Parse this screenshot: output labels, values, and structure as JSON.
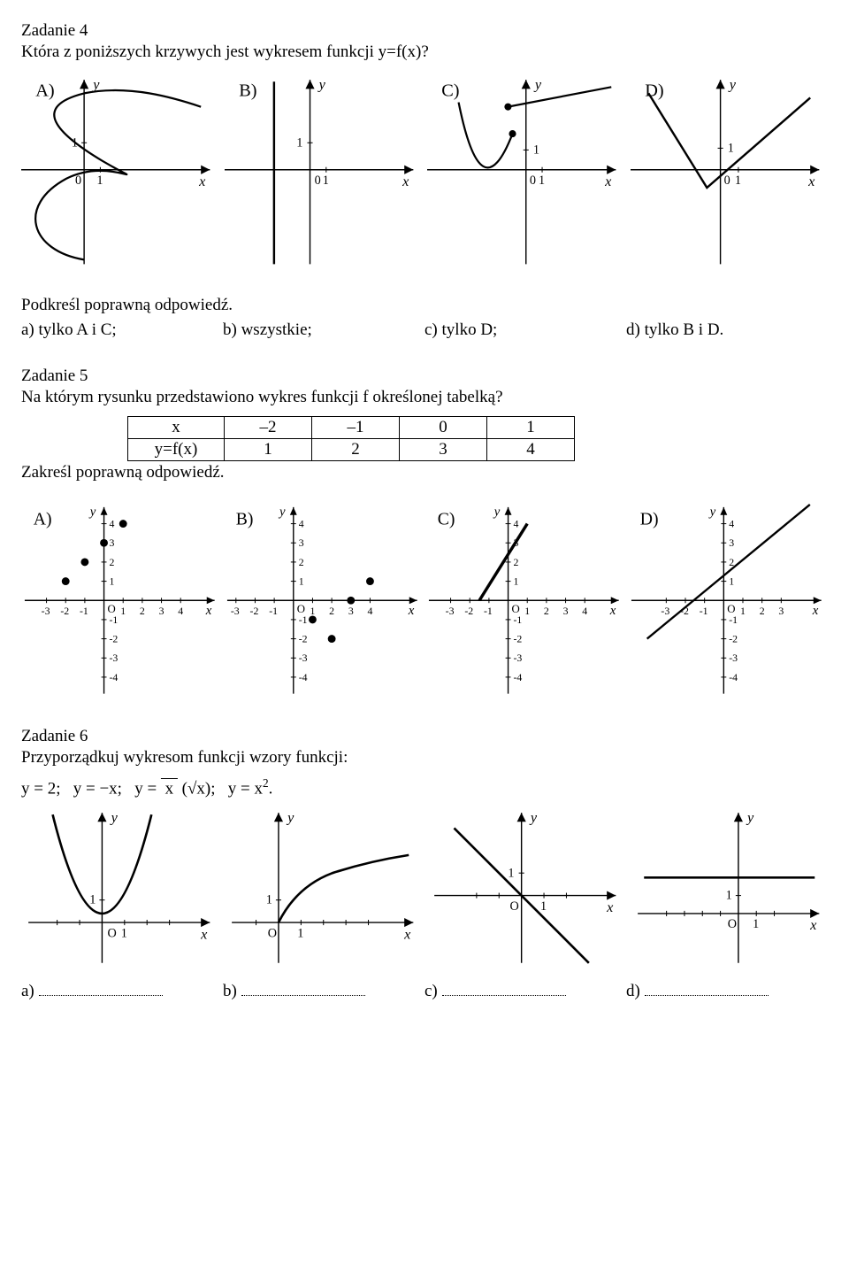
{
  "z4": {
    "title": "Zadanie 4",
    "question": "Która z poniższych krzywych jest wykresem funkcji y=f(x)?",
    "panels": [
      "A)",
      "B)",
      "C)",
      "D)"
    ],
    "axis_labels": {
      "x": "x",
      "y": "y",
      "one": "1"
    },
    "instr": "Podkreśl poprawną odpowiedź.",
    "answers": [
      "a) tylko A i C;",
      "b) wszystkie;",
      "c) tylko D;",
      "d) tylko B i D."
    ]
  },
  "z5": {
    "title": "Zadanie 5",
    "question": "Na którym rysunku przedstawiono wykres funkcji f określonej tabelką?",
    "table": {
      "head": [
        "x",
        "–2",
        "–1",
        "0",
        "1"
      ],
      "row": [
        "y=f(x)",
        "1",
        "2",
        "3",
        "4"
      ]
    },
    "instr": "Zakreśl poprawną odpowiedź.",
    "panels": [
      "A)",
      "B)",
      "C)",
      "D)"
    ],
    "yticks": [
      "4",
      "3",
      "2",
      "1",
      "-1",
      "-2",
      "-3",
      "-4"
    ],
    "xticks_neg": [
      "-3",
      "-2",
      "-1"
    ],
    "xticks_pos": [
      "1",
      "2",
      "3",
      "4"
    ],
    "xticks_pos_d": [
      "1",
      "2",
      "3"
    ],
    "axis_labels": {
      "x": "x",
      "y": "y",
      "O": "O"
    },
    "pointsA": [
      [
        -2,
        1
      ],
      [
        -1,
        2
      ],
      [
        0,
        3
      ],
      [
        1,
        4
      ]
    ],
    "pointsB": [
      [
        4,
        1
      ],
      [
        2,
        -2
      ],
      [
        1,
        -1
      ],
      [
        3,
        0
      ]
    ]
  },
  "z6": {
    "title": "Zadanie 6",
    "question": "Przyporządkuj wykresom funkcji wzory funkcji:",
    "formulas": "y = 2;   y = −x;   y = √x;   y = x².",
    "axis_labels": {
      "x": "x",
      "y": "y",
      "one": "1",
      "O": "O"
    },
    "answers": [
      "a)",
      "b)",
      "c)",
      "d)"
    ]
  },
  "style": {
    "stroke": "#000000",
    "stroke_width": 1.6,
    "curve_width": 2.2,
    "font": "italic 16px Times New Roman"
  }
}
